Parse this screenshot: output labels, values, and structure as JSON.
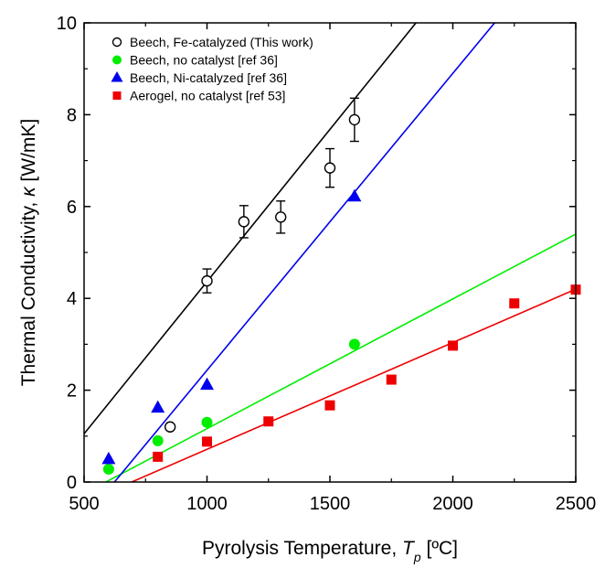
{
  "chart_data": {
    "type": "scatter",
    "xlabel": "Pyrolysis Temperature, ",
    "xlabel_symbol": "T",
    "xlabel_subscript": "p",
    "xlabel_unit": " [ºC]",
    "ylabel": "Thermal Conductivity, ",
    "ylabel_symbol": "κ",
    "ylabel_unit": " [W/mK]",
    "xlim": [
      500,
      2500
    ],
    "ylim": [
      0,
      10
    ],
    "xticks": [
      500,
      1000,
      1500,
      2000,
      2500
    ],
    "yticks": [
      0,
      2,
      4,
      6,
      8,
      10
    ],
    "grid": false,
    "legend_position": "top-left",
    "series": [
      {
        "name": "Beech, Fe-catalyzed (This work)",
        "marker": "open-circle",
        "color": "#000000",
        "x": [
          850,
          1000,
          1150,
          1300,
          1500,
          1600
        ],
        "y": [
          1.2,
          4.38,
          5.67,
          5.77,
          6.84,
          7.89
        ],
        "yerr": [
          0,
          0.26,
          0.35,
          0.35,
          0.42,
          0.47
        ],
        "fit": [
          [
            500,
            1.05
          ],
          [
            1850,
            10.0
          ]
        ]
      },
      {
        "name": "Beech, no catalyst [ref 36]",
        "marker": "circle",
        "color": "#00ee00",
        "x": [
          600,
          800,
          1000,
          1600
        ],
        "y": [
          0.28,
          0.9,
          1.3,
          3.0
        ],
        "fit": [
          [
            500,
            -0.25
          ],
          [
            2500,
            5.4
          ]
        ]
      },
      {
        "name": "Beech, Ni-catalyzed [ref 36]",
        "marker": "triangle",
        "color": "#0000ee",
        "x": [
          600,
          800,
          1000,
          1600
        ],
        "y": [
          0.5,
          1.62,
          2.12,
          6.22
        ],
        "fit": [
          [
            500,
            -0.8
          ],
          [
            2170,
            10.0
          ]
        ]
      },
      {
        "name": "Aerogel, no catalyst [ref 53]",
        "marker": "square",
        "color": "#ee0000",
        "x": [
          800,
          1000,
          1250,
          1500,
          1750,
          2000,
          2250,
          2500
        ],
        "y": [
          0.55,
          0.88,
          1.32,
          1.67,
          2.23,
          2.97,
          3.89,
          4.19
        ],
        "fit": [
          [
            500,
            -0.45
          ],
          [
            2500,
            4.2
          ]
        ]
      }
    ]
  }
}
